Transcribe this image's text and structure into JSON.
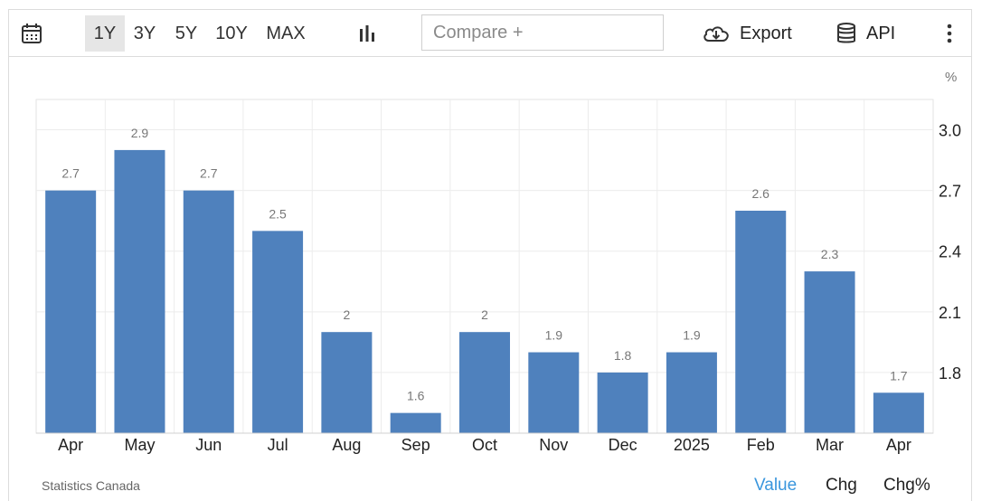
{
  "toolbar": {
    "ranges": [
      "1Y",
      "3Y",
      "5Y",
      "10Y",
      "MAX"
    ],
    "active_range": "1Y",
    "compare_placeholder": "Compare +",
    "export_label": "Export",
    "api_label": "API",
    "icons": [
      "calendar-icon",
      "bar-chart-icon",
      "cloud-download-icon",
      "database-icon",
      "more-vertical-icon"
    ]
  },
  "unit_label": "%",
  "source": "Statistics Canada",
  "views": {
    "value": "Value",
    "chg": "Chg",
    "chgpct": "Chg%",
    "active": "value"
  },
  "colors": {
    "bar": "#4f81bd",
    "accent": "#3a96dd",
    "grid": "#ececec",
    "axis_text": "#222222",
    "data_label": "#777777"
  },
  "chart_data": {
    "type": "bar",
    "categories": [
      "Apr",
      "May",
      "Jun",
      "Jul",
      "Aug",
      "Sep",
      "Oct",
      "Nov",
      "Dec",
      "2025",
      "Feb",
      "Mar",
      "Apr"
    ],
    "values": [
      2.7,
      2.9,
      2.7,
      2.5,
      2.0,
      1.6,
      2.0,
      1.9,
      1.8,
      1.9,
      2.6,
      2.3,
      1.7
    ],
    "data_labels": [
      "2.7",
      "2.9",
      "2.7",
      "2.5",
      "2",
      "1.6",
      "2",
      "1.9",
      "1.8",
      "1.9",
      "2.6",
      "2.3",
      "1.7"
    ],
    "yticks": [
      "1.8",
      "2.1",
      "2.4",
      "2.7",
      "3.0"
    ],
    "ylim": [
      1.5,
      3.15
    ],
    "y_axis_position": "right",
    "grid": true,
    "legend": false,
    "title": "",
    "xlabel": "",
    "ylabel": ""
  }
}
